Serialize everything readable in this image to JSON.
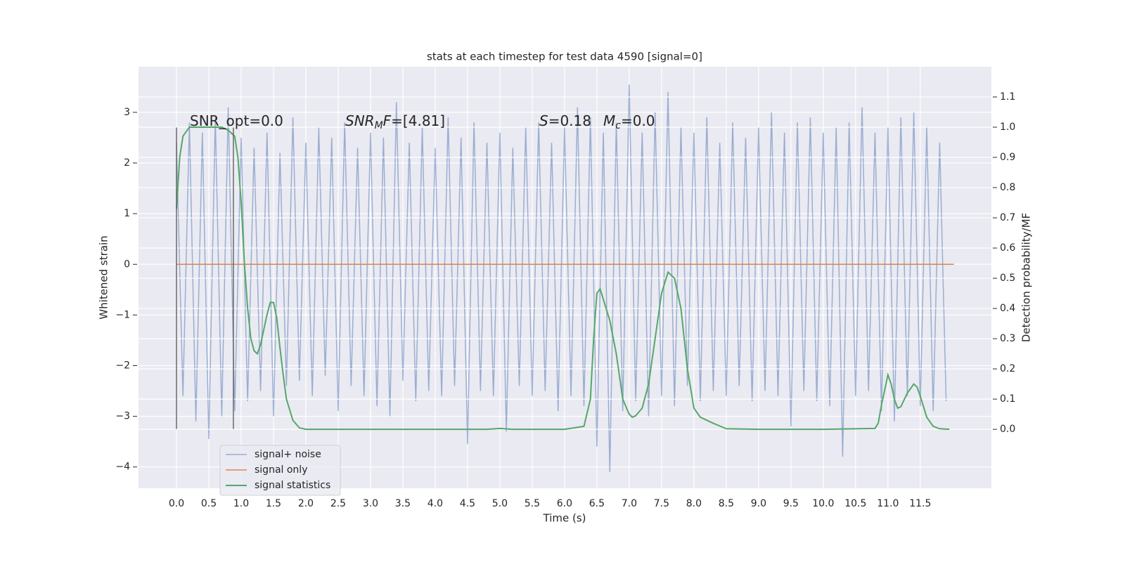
{
  "chart_data": {
    "type": "line",
    "title": "stats at each timestep for test data 4590 [signal=0]",
    "xlabel": "Time (s)",
    "ylabel": "Whitened strain",
    "y2label": "Detection probability/MF",
    "xlim": [
      -0.587,
      12.6
    ],
    "ylim": [
      -4.42,
      3.9
    ],
    "y2lim": [
      -0.195,
      1.2
    ],
    "xticks": [
      {
        "value": 0,
        "label": "0.0"
      },
      0.5,
      {
        "value": 1,
        "label": "1.0"
      },
      1.5,
      {
        "value": 2,
        "label": "2.0"
      },
      2.5,
      {
        "value": 3,
        "label": "3.0"
      },
      3.5,
      {
        "value": 4,
        "label": "4.0"
      },
      4.5,
      {
        "value": 5,
        "label": "5.0"
      },
      5.5,
      {
        "value": 6,
        "label": "6.0"
      },
      6.5,
      {
        "value": 7,
        "label": "7.0"
      },
      7.5,
      {
        "value": 8,
        "label": "8.0"
      },
      8.5,
      {
        "value": 9,
        "label": "9.0"
      },
      9.5,
      {
        "value": 10,
        "label": "10.0"
      },
      10.5,
      {
        "value": 11,
        "label": "11.0"
      },
      11.5
    ],
    "yticks": [
      {
        "value": -4,
        "label": "−4"
      },
      {
        "value": -3,
        "label": "−3"
      },
      {
        "value": -2,
        "label": "−2"
      },
      {
        "value": -1,
        "label": "−1"
      },
      0,
      1,
      2,
      3
    ],
    "y2ticks": [
      {
        "value": 0,
        "label": "0.0"
      },
      0.1,
      0.2,
      0.3,
      0.4,
      0.5,
      0.6,
      0.7,
      0.8,
      0.9,
      {
        "value": 1,
        "label": "1.0"
      },
      1.1
    ],
    "grid": true,
    "legend": true,
    "series": [
      {
        "name": "signal+ noise",
        "color": "#4c72b0",
        "alpha": 0.5,
        "x": [
          0,
          0.1,
          0.2,
          0.3,
          0.4,
          0.5,
          0.6,
          0.7,
          0.8,
          0.9,
          1,
          1.1,
          1.2,
          1.3,
          1.4,
          1.5,
          1.6,
          1.7,
          1.8,
          1.9,
          2,
          2.1,
          2.2,
          2.3,
          2.4,
          2.5,
          2.6,
          2.7,
          2.8,
          2.9,
          3,
          3.1,
          3.2,
          3.3,
          3.4,
          3.5,
          3.6,
          3.7,
          3.8,
          3.9,
          4,
          4.1,
          4.2,
          4.3,
          4.4,
          4.5,
          4.6,
          4.7,
          4.8,
          4.9,
          5,
          5.1,
          5.2,
          5.3,
          5.4,
          5.5,
          5.6,
          5.7,
          5.8,
          5.9,
          6,
          6.1,
          6.2,
          6.3,
          6.4,
          6.5,
          6.6,
          6.7,
          6.8,
          6.9,
          7,
          7.1,
          7.2,
          7.3,
          7.4,
          7.5,
          7.6,
          7.7,
          7.8,
          7.9,
          8,
          8.1,
          8.2,
          8.3,
          8.4,
          8.5,
          8.6,
          8.7,
          8.8,
          8.9,
          9,
          9.1,
          9.2,
          9.3,
          9.4,
          9.5,
          9.6,
          9.7,
          9.8,
          9.9,
          10,
          10.1,
          10.2,
          10.3,
          10.4,
          10.5,
          10.6,
          10.7,
          10.8,
          10.9,
          11,
          11.1,
          11.2,
          11.3,
          11.4,
          11.5,
          11.6,
          11.7,
          11.8,
          11.9
        ],
        "values": [
          2.4,
          -2.6,
          2.8,
          -3.1,
          2.6,
          -3.45,
          2.9,
          -3.0,
          3.1,
          -2.9,
          2.5,
          -2.7,
          2.3,
          -2.5,
          2.6,
          -3.0,
          2.2,
          -2.4,
          2.9,
          -2.3,
          2.4,
          -2.6,
          2.7,
          -2.2,
          2.5,
          -2.9,
          2.8,
          -2.4,
          2.3,
          -2.6,
          2.6,
          -2.8,
          2.5,
          -3.0,
          3.2,
          -2.3,
          2.4,
          -2.7,
          2.7,
          -2.5,
          2.3,
          -2.6,
          2.9,
          -2.4,
          2.5,
          -3.55,
          2.8,
          -2.5,
          2.4,
          -2.6,
          2.6,
          -3.3,
          2.3,
          -2.4,
          2.7,
          -2.6,
          2.8,
          -2.5,
          2.4,
          -2.9,
          2.7,
          -2.6,
          3.1,
          -2.8,
          2.9,
          -3.6,
          2.6,
          -4.1,
          2.8,
          -2.9,
          3.55,
          -2.7,
          2.6,
          -3.0,
          3.0,
          -2.6,
          3.4,
          -2.8,
          2.7,
          -2.4,
          2.6,
          -2.7,
          2.9,
          -2.5,
          2.4,
          -2.6,
          2.8,
          -2.4,
          2.5,
          -2.7,
          2.7,
          -2.5,
          3.0,
          -2.6,
          2.6,
          -3.2,
          2.8,
          -2.5,
          2.9,
          -2.7,
          2.6,
          -2.8,
          2.7,
          -3.8,
          2.8,
          -2.6,
          3.1,
          -2.5,
          2.6,
          -2.9,
          2.7,
          -3.1,
          2.9,
          -2.6,
          3.0,
          -2.8,
          2.7,
          -2.9,
          2.4,
          -2.7
        ]
      },
      {
        "name": "signal only",
        "color": "#dd8452",
        "x": [
          0,
          12.02
        ],
        "values": [
          0,
          0
        ]
      },
      {
        "name": "signal statistics",
        "color": "#55a868",
        "axis": "y2",
        "x": [
          0,
          0.05,
          0.1,
          0.2,
          0.3,
          0.4,
          0.5,
          0.6,
          0.7,
          0.8,
          0.85,
          0.9,
          0.95,
          1.0,
          1.05,
          1.1,
          1.15,
          1.2,
          1.25,
          1.3,
          1.35,
          1.4,
          1.45,
          1.5,
          1.55,
          1.6,
          1.65,
          1.7,
          1.8,
          1.9,
          2.0,
          3.0,
          4.0,
          4.8,
          5.0,
          5.2,
          6.0,
          6.3,
          6.4,
          6.45,
          6.5,
          6.55,
          6.6,
          6.7,
          6.8,
          6.9,
          7.0,
          7.05,
          7.1,
          7.2,
          7.3,
          7.4,
          7.5,
          7.6,
          7.7,
          7.8,
          7.9,
          8.0,
          8.1,
          8.3,
          8.5,
          9.0,
          10.0,
          10.8,
          10.85,
          10.9,
          11.0,
          11.05,
          11.1,
          11.15,
          11.2,
          11.3,
          11.4,
          11.45,
          11.5,
          11.6,
          11.7,
          11.8,
          11.95
        ],
        "values": [
          0.73,
          0.9,
          0.97,
          1.0,
          1.0,
          1.0,
          1.0,
          1.0,
          1.0,
          0.99,
          0.98,
          0.97,
          0.9,
          0.75,
          0.55,
          0.4,
          0.3,
          0.26,
          0.25,
          0.28,
          0.33,
          0.38,
          0.42,
          0.42,
          0.37,
          0.27,
          0.18,
          0.1,
          0.03,
          0.005,
          0,
          0,
          0,
          0,
          0.003,
          0,
          0,
          0.01,
          0.1,
          0.3,
          0.45,
          0.465,
          0.43,
          0.36,
          0.25,
          0.1,
          0.05,
          0.04,
          0.045,
          0.07,
          0.15,
          0.3,
          0.45,
          0.52,
          0.5,
          0.4,
          0.2,
          0.07,
          0.04,
          0.02,
          0.002,
          0,
          0,
          0.003,
          0.02,
          0.08,
          0.18,
          0.15,
          0.1,
          0.07,
          0.075,
          0.12,
          0.15,
          0.14,
          0.11,
          0.04,
          0.01,
          0.002,
          0
        ]
      }
    ],
    "vlines": {
      "x": [
        0,
        0.88
      ],
      "ymin": -3.25,
      "ymax": 2.7,
      "color": "#555555"
    },
    "annotations": [
      [
        {
          "text": "SNR_opt=0.0",
          "style": "normal"
        }
      ],
      [
        {
          "text": "SNR",
          "style": "italic"
        },
        {
          "text": "M",
          "style": "sub"
        },
        {
          "text": "F",
          "style": "italic"
        },
        {
          "text": "=[4.81]",
          "style": "normal"
        }
      ],
      [
        {
          "text": "S",
          "style": "italic"
        },
        {
          "text": "=0.18",
          "style": "normal"
        }
      ],
      [
        {
          "text": "M",
          "style": "italic"
        },
        {
          "text": "c",
          "style": "sub"
        },
        {
          "text": "=0.0",
          "style": "normal"
        }
      ]
    ]
  }
}
